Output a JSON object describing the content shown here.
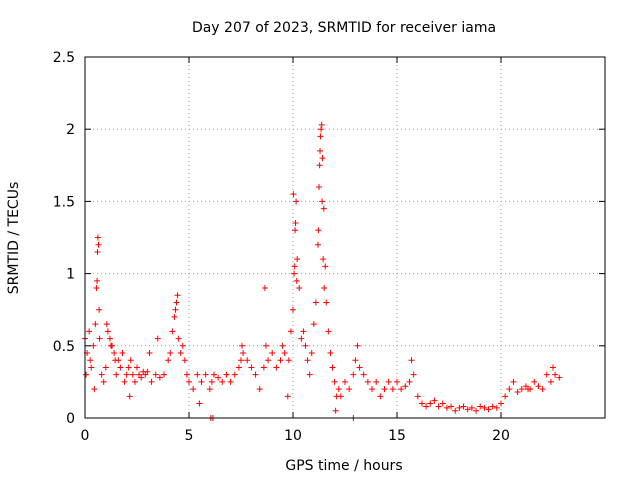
{
  "chart_data": {
    "type": "scatter",
    "title": "Day 207 of 2023, SRMTID for receiver iama",
    "xlabel": "GPS time / hours",
    "ylabel": "SRMTID / TECUs",
    "xlim": [
      0,
      25
    ],
    "ylim": [
      0,
      2.5
    ],
    "xticks": [
      0,
      5,
      10,
      15,
      20
    ],
    "xtick_labels": [
      "0",
      "5",
      "10",
      "15",
      "20"
    ],
    "yticks": [
      0,
      0.5,
      1,
      1.5,
      2,
      2.5
    ],
    "ytick_labels": [
      "0",
      "0.5",
      "1",
      "1.5",
      "2",
      "2.5"
    ],
    "grid": true,
    "marker": "+",
    "marker_color": "#ff0000",
    "series": [
      {
        "name": "SRMTID",
        "x": [
          0.0,
          0.1,
          0.2,
          0.3,
          0.4,
          0.5,
          0.55,
          0.6,
          0.65,
          0.7,
          0.8,
          0.9,
          1.0,
          1.1,
          1.2,
          1.3,
          1.4,
          1.5,
          1.6,
          1.7,
          1.8,
          1.9,
          2.0,
          2.1,
          2.2,
          2.3,
          2.4,
          2.5,
          2.6,
          2.7,
          2.8,
          2.9,
          3.0,
          3.2,
          3.4,
          3.6,
          3.8,
          4.0,
          4.1,
          4.2,
          4.3,
          4.4,
          4.5,
          4.6,
          4.7,
          4.8,
          4.9,
          5.0,
          5.2,
          5.4,
          5.6,
          5.8,
          6.0,
          6.1,
          6.2,
          6.4,
          6.6,
          6.8,
          7.0,
          7.2,
          7.4,
          7.5,
          7.6,
          7.8,
          8.0,
          8.2,
          8.4,
          8.6,
          8.7,
          8.8,
          9.0,
          9.2,
          9.4,
          9.5,
          9.6,
          9.8,
          9.9,
          10.0,
          10.05,
          10.1,
          10.15,
          10.2,
          10.3,
          10.4,
          10.5,
          10.6,
          10.7,
          10.8,
          10.9,
          11.0,
          11.1,
          11.2,
          11.25,
          11.3,
          11.35,
          11.4,
          11.45,
          11.5,
          11.6,
          11.7,
          11.8,
          11.9,
          12.0,
          12.1,
          12.2,
          12.3,
          12.5,
          12.7,
          12.9,
          13.0,
          13.2,
          13.4,
          13.6,
          13.8,
          14.0,
          14.2,
          14.4,
          14.6,
          14.8,
          15.0,
          15.2,
          15.4,
          15.6,
          15.8,
          16.0,
          16.2,
          16.4,
          16.6,
          16.8,
          17.0,
          17.2,
          17.4,
          17.6,
          17.8,
          18.0,
          18.2,
          18.4,
          18.6,
          18.8,
          19.0,
          19.2,
          19.4,
          19.6,
          19.8,
          20.0,
          20.2,
          20.4,
          20.6,
          20.8,
          21.0,
          21.2,
          21.4,
          21.6,
          21.8,
          22.0,
          22.2,
          22.4,
          22.6,
          22.8,
          0.05,
          0.25,
          0.45,
          0.58,
          0.62,
          0.68,
          1.05,
          1.25,
          1.45,
          2.15,
          3.1,
          3.5,
          4.35,
          4.45,
          5.5,
          6.05,
          6.15,
          7.55,
          8.65,
          9.75,
          10.02,
          10.08,
          10.12,
          10.18,
          11.22,
          11.28,
          11.32,
          11.38,
          11.42,
          11.48,
          11.55,
          12.05,
          12.9,
          13.1,
          15.7,
          21.3,
          22.5
        ],
        "y": [
          0.55,
          0.45,
          0.6,
          0.35,
          0.5,
          0.65,
          0.9,
          1.15,
          1.2,
          0.55,
          0.3,
          0.25,
          0.35,
          0.6,
          0.55,
          0.5,
          0.45,
          0.3,
          0.4,
          0.35,
          0.45,
          0.25,
          0.3,
          0.35,
          0.4,
          0.3,
          0.25,
          0.35,
          0.3,
          0.28,
          0.32,
          0.3,
          0.32,
          0.25,
          0.3,
          0.28,
          0.3,
          0.4,
          0.45,
          0.6,
          0.7,
          0.8,
          0.55,
          0.45,
          0.5,
          0.4,
          0.3,
          0.25,
          0.2,
          0.3,
          0.25,
          0.3,
          0.2,
          0.25,
          0.3,
          0.28,
          0.25,
          0.3,
          0.25,
          0.3,
          0.35,
          0.4,
          0.45,
          0.4,
          0.35,
          0.3,
          0.2,
          0.35,
          0.5,
          0.4,
          0.45,
          0.35,
          0.4,
          0.5,
          0.45,
          0.4,
          0.6,
          0.75,
          1.0,
          1.3,
          1.5,
          1.1,
          0.9,
          0.55,
          0.6,
          0.5,
          0.4,
          0.3,
          0.45,
          0.65,
          0.8,
          1.2,
          1.6,
          1.85,
          2.0,
          1.5,
          1.1,
          0.9,
          0.8,
          0.6,
          0.45,
          0.35,
          0.25,
          0.15,
          0.2,
          0.15,
          0.25,
          0.2,
          0.3,
          0.4,
          0.35,
          0.3,
          0.25,
          0.2,
          0.25,
          0.15,
          0.2,
          0.25,
          0.2,
          0.25,
          0.2,
          0.22,
          0.25,
          0.3,
          0.15,
          0.1,
          0.08,
          0.1,
          0.12,
          0.08,
          0.1,
          0.07,
          0.08,
          0.05,
          0.07,
          0.08,
          0.06,
          0.07,
          0.05,
          0.08,
          0.07,
          0.06,
          0.08,
          0.07,
          0.1,
          0.15,
          0.2,
          0.25,
          0.18,
          0.2,
          0.22,
          0.2,
          0.25,
          0.22,
          0.2,
          0.3,
          0.25,
          0.3,
          0.28,
          0.3,
          0.4,
          0.2,
          0.95,
          1.25,
          0.75,
          0.65,
          0.5,
          0.4,
          0.15,
          0.45,
          0.55,
          0.75,
          0.85,
          0.1,
          0.0,
          0.0,
          0.5,
          0.9,
          0.15,
          1.55,
          1.05,
          1.35,
          0.95,
          1.3,
          1.75,
          1.95,
          2.03,
          1.8,
          1.45,
          1.05,
          0.05,
          0.0,
          0.5,
          0.4,
          0.2,
          0.35
        ]
      }
    ]
  }
}
